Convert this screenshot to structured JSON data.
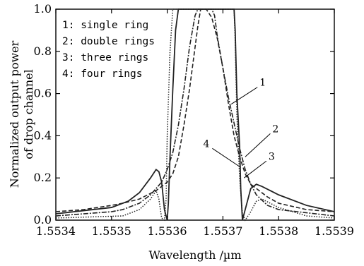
{
  "chart_data": {
    "type": "line",
    "title": "",
    "xlabel": "Wavelength /µm",
    "ylabel": [
      "Normalized output power",
      "of drop channel"
    ],
    "xlim": [
      1.5534,
      1.5539
    ],
    "ylim": [
      0.0,
      1.0
    ],
    "x_ticks": [
      1.5534,
      1.5535,
      1.5536,
      1.5537,
      1.5538,
      1.5539
    ],
    "x_tick_labels": [
      "1.5534",
      "1.5535",
      "1.5536",
      "1.5537",
      "1.5538",
      "1.5539"
    ],
    "y_ticks": [
      0.0,
      0.2,
      0.4,
      0.6,
      0.8,
      1.0
    ],
    "y_tick_labels": [
      "0.0",
      "0.2",
      "0.4",
      "0.6",
      "0.8",
      "1.0"
    ],
    "grid": false,
    "legend_position": "top-left",
    "legend": [
      "1: single ring",
      "2: double rings",
      "3: three rings",
      "4: four rings"
    ],
    "series": [
      {
        "name": "1: single ring",
        "style": "dashed",
        "points": [
          [
            1.5534,
            0.04
          ],
          [
            1.55345,
            0.05
          ],
          [
            1.5535,
            0.07
          ],
          [
            1.55352,
            0.08
          ],
          [
            1.55355,
            0.1
          ],
          [
            1.55358,
            0.14
          ],
          [
            1.5536,
            0.18
          ],
          [
            1.55361,
            0.22
          ],
          [
            1.55362,
            0.3
          ],
          [
            1.55363,
            0.45
          ],
          [
            1.55364,
            0.62
          ],
          [
            1.55365,
            0.82
          ],
          [
            1.553655,
            0.92
          ],
          [
            1.55366,
            1.0
          ],
          [
            1.55367,
            1.0
          ],
          [
            1.55368,
            0.96
          ],
          [
            1.55369,
            0.86
          ],
          [
            1.5537,
            0.72
          ],
          [
            1.55371,
            0.55
          ],
          [
            1.55372,
            0.4
          ],
          [
            1.55373,
            0.3
          ],
          [
            1.55374,
            0.22
          ],
          [
            1.55375,
            0.17
          ],
          [
            1.55378,
            0.11
          ],
          [
            1.5538,
            0.08
          ],
          [
            1.55385,
            0.05
          ],
          [
            1.5539,
            0.04
          ]
        ]
      },
      {
        "name": "2: double rings",
        "style": "dash-dot",
        "points": [
          [
            1.5534,
            0.02
          ],
          [
            1.5535,
            0.04
          ],
          [
            1.55352,
            0.05
          ],
          [
            1.55355,
            0.08
          ],
          [
            1.55357,
            0.12
          ],
          [
            1.55359,
            0.18
          ],
          [
            1.5536,
            0.24
          ],
          [
            1.55361,
            0.32
          ],
          [
            1.55362,
            0.45
          ],
          [
            1.55363,
            0.62
          ],
          [
            1.55364,
            0.82
          ],
          [
            1.55365,
            0.97
          ],
          [
            1.553655,
            1.0
          ],
          [
            1.55368,
            1.0
          ],
          [
            1.553685,
            0.97
          ],
          [
            1.55369,
            0.87
          ],
          [
            1.5537,
            0.72
          ],
          [
            1.55371,
            0.58
          ],
          [
            1.55372,
            0.46
          ],
          [
            1.55373,
            0.34
          ],
          [
            1.55374,
            0.24
          ],
          [
            1.55375,
            0.17
          ],
          [
            1.55376,
            0.12
          ],
          [
            1.55378,
            0.07
          ],
          [
            1.5538,
            0.05
          ],
          [
            1.5539,
            0.02
          ]
        ]
      },
      {
        "name": "3: three rings",
        "style": "solid",
        "points": [
          [
            1.5534,
            0.03
          ],
          [
            1.5535,
            0.06
          ],
          [
            1.55353,
            0.09
          ],
          [
            1.55355,
            0.13
          ],
          [
            1.55357,
            0.2
          ],
          [
            1.55358,
            0.24
          ],
          [
            1.553585,
            0.23
          ],
          [
            1.55359,
            0.18
          ],
          [
            1.553595,
            0.05
          ],
          [
            1.5536,
            0.0
          ],
          [
            1.553602,
            0.08
          ],
          [
            1.553605,
            0.3
          ],
          [
            1.55361,
            0.62
          ],
          [
            1.553615,
            0.9
          ],
          [
            1.55362,
            1.0
          ],
          [
            1.55372,
            1.0
          ],
          [
            1.553722,
            0.9
          ],
          [
            1.553725,
            0.6
          ],
          [
            1.55373,
            0.35
          ],
          [
            1.553732,
            0.15
          ],
          [
            1.553735,
            0.0
          ],
          [
            1.55374,
            0.05
          ],
          [
            1.55375,
            0.15
          ],
          [
            1.55376,
            0.17
          ],
          [
            1.55377,
            0.16
          ],
          [
            1.5538,
            0.12
          ],
          [
            1.55385,
            0.07
          ],
          [
            1.5539,
            0.04
          ]
        ]
      },
      {
        "name": "4: four rings",
        "style": "dotted",
        "points": [
          [
            1.5534,
            0.01
          ],
          [
            1.55352,
            0.02
          ],
          [
            1.55355,
            0.05
          ],
          [
            1.55357,
            0.1
          ],
          [
            1.55358,
            0.14
          ],
          [
            1.553585,
            0.1
          ],
          [
            1.55359,
            0.01
          ],
          [
            1.553595,
            0.0
          ],
          [
            1.553598,
            0.1
          ],
          [
            1.5536,
            0.4
          ],
          [
            1.553605,
            0.8
          ],
          [
            1.55361,
            1.0
          ],
          [
            1.55372,
            1.0
          ],
          [
            1.553722,
            0.85
          ],
          [
            1.553725,
            0.5
          ],
          [
            1.55373,
            0.2
          ],
          [
            1.553735,
            0.03
          ],
          [
            1.55374,
            0.0
          ],
          [
            1.55375,
            0.04
          ],
          [
            1.55376,
            0.09
          ],
          [
            1.55377,
            0.1
          ],
          [
            1.5538,
            0.06
          ],
          [
            1.55385,
            0.02
          ],
          [
            1.5539,
            0.01
          ]
        ]
      }
    ],
    "annotations": [
      {
        "label": "1",
        "x": 1.553715,
        "y": 0.55,
        "text_x": 1.553762,
        "text_y": 0.63
      },
      {
        "label": "2",
        "x": 1.55374,
        "y": 0.3,
        "text_x": 1.553785,
        "text_y": 0.41
      },
      {
        "label": "3",
        "x": 1.553738,
        "y": 0.2,
        "text_x": 1.553778,
        "text_y": 0.28
      },
      {
        "label": "4",
        "x": 1.553732,
        "y": 0.25,
        "text_x": 1.553681,
        "text_y": 0.34
      }
    ]
  }
}
